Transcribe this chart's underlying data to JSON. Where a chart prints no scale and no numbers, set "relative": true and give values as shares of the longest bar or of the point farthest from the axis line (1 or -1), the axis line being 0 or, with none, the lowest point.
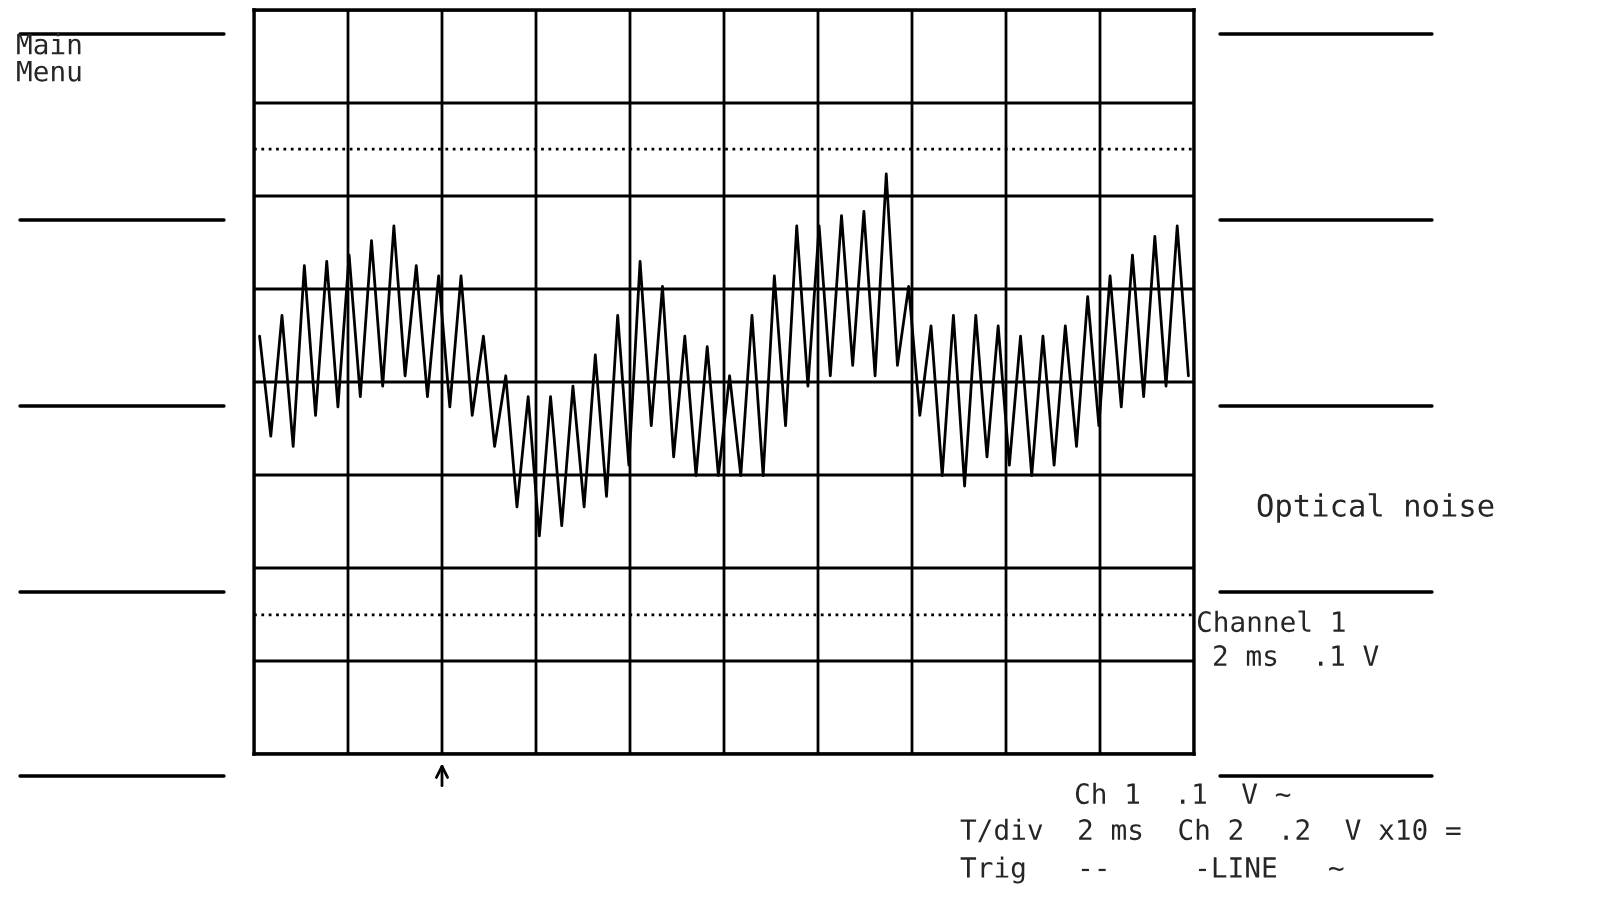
{
  "chart_data": {
    "type": "line",
    "relative": true,
    "grid": true,
    "tick_labels": false,
    "line_style": "solid",
    "marker": "none",
    "categories": [
      null,
      null,
      null,
      null,
      null,
      null,
      null,
      null,
      null,
      null,
      null,
      null,
      null,
      null,
      null,
      null,
      null,
      null,
      null,
      null,
      null,
      null,
      null,
      null,
      null,
      null,
      null,
      null,
      null,
      null,
      null,
      null,
      null,
      null,
      null,
      null,
      null,
      null,
      null,
      null,
      null,
      null,
      null,
      null,
      null,
      null,
      null,
      null,
      null,
      null,
      null,
      null,
      null,
      null,
      null,
      null,
      null,
      null,
      null,
      null,
      null,
      null,
      null,
      null,
      null,
      null,
      null,
      null,
      null,
      null,
      null,
      null,
      null,
      null,
      null,
      null,
      null,
      null,
      null,
      null,
      null,
      null,
      null,
      null
    ],
    "series": [
      {
        "color": "#000000",
        "values": [
          0.22,
          -0.26,
          0.32,
          -0.31,
          0.56,
          -0.16,
          0.58,
          -0.12,
          0.61,
          -0.07,
          0.68,
          -0.02,
          0.75,
          0.03,
          0.56,
          -0.07,
          0.51,
          -0.12,
          0.51,
          -0.16,
          0.22,
          -0.31,
          0.03,
          -0.6,
          -0.07,
          -0.74,
          -0.07,
          -0.69,
          -0.02,
          -0.6,
          0.13,
          -0.55,
          0.32,
          -0.4,
          0.58,
          -0.21,
          0.46,
          -0.36,
          0.22,
          -0.45,
          0.17,
          -0.45,
          0.03,
          -0.45,
          0.32,
          -0.45,
          0.51,
          -0.21,
          0.75,
          -0.02,
          0.75,
          0.03,
          0.8,
          0.08,
          0.82,
          0.03,
          1,
          0.08,
          0.46,
          -0.16,
          0.27,
          -0.45,
          0.32,
          -0.5,
          0.32,
          -0.36,
          0.27,
          -0.4,
          0.22,
          -0.45,
          0.22,
          -0.4,
          0.27,
          -0.31,
          0.41,
          -0.21,
          0.51,
          -0.12,
          0.61,
          -0.07,
          0.7,
          -0.02,
          0.75,
          0.03
        ]
      }
    ],
    "ref_lines": [
      {
        "axis": "y",
        "value": 1.12,
        "line_style": "dotted",
        "color": "#000000"
      },
      {
        "axis": "y",
        "value": -1.12,
        "line_style": "dotted",
        "color": "#000000"
      }
    ],
    "annotations": [
      "Main\nMenu",
      "Optical noise",
      "Channel 1",
      "2 ms  .1 V",
      "Ch 1  .1  V ~",
      "T/div  2 ms  Ch 2  .2  V x10 =",
      "Trig   --     -LINE   ~"
    ]
  }
}
